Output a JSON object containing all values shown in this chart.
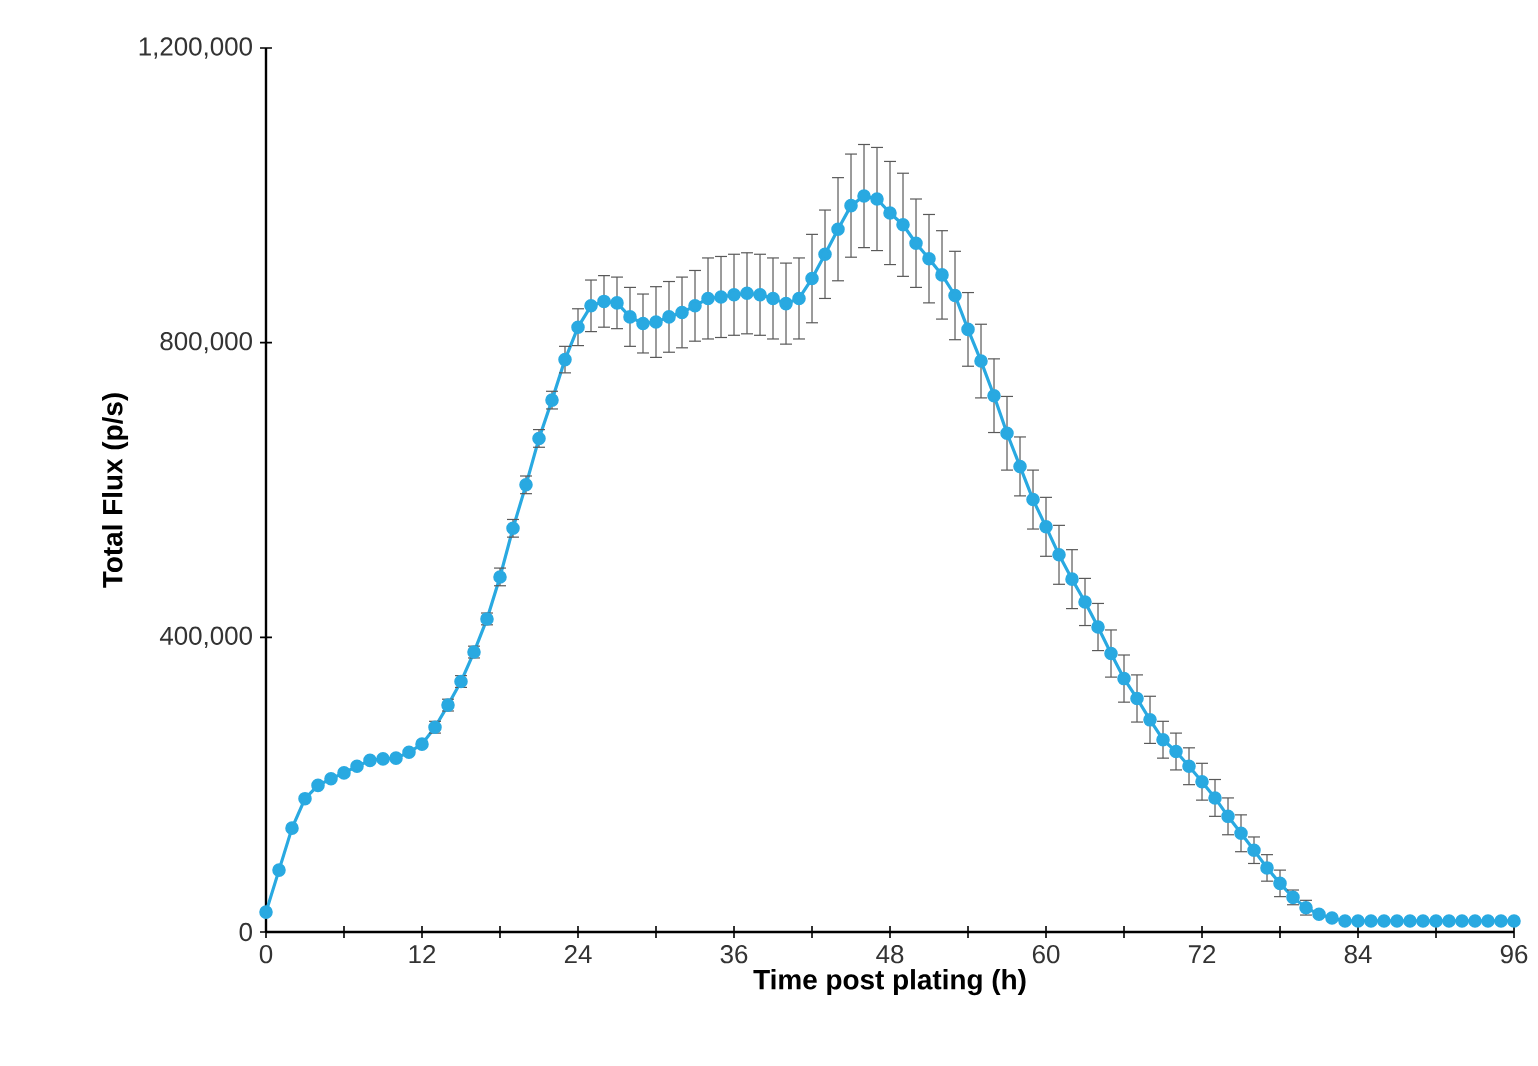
{
  "chart_data": {
    "type": "line",
    "xlabel": "Time post plating (h)",
    "ylabel": "Total Flux (p/s)",
    "xlim": [
      0,
      96
    ],
    "ylim": [
      0,
      1200000
    ],
    "xticks": [
      0,
      {
        "value": 6,
        "label": null
      },
      12,
      {
        "value": 18,
        "label": null
      },
      24,
      {
        "value": 30,
        "label": null
      },
      36,
      {
        "value": 42,
        "label": null
      },
      48,
      {
        "value": 54,
        "label": null
      },
      60,
      {
        "value": 66,
        "label": null
      },
      72,
      {
        "value": 78,
        "label": null
      },
      84,
      {
        "value": 90,
        "label": null
      },
      96
    ],
    "yticks": [
      0,
      {
        "value": 400000,
        "label": "400,000"
      },
      {
        "value": 800000,
        "label": "800,000"
      },
      {
        "value": 1200000,
        "label": "1,200,000"
      }
    ],
    "marker": "circle",
    "line_style": "solid",
    "series": [
      {
        "color": "#29a9e1",
        "x": [
          0,
          1,
          2,
          3,
          4,
          5,
          6,
          7,
          8,
          9,
          10,
          11,
          12,
          13,
          14,
          15,
          16,
          17,
          18,
          19,
          20,
          21,
          22,
          23,
          24,
          25,
          26,
          27,
          28,
          29,
          30,
          31,
          32,
          33,
          34,
          35,
          36,
          37,
          38,
          39,
          40,
          41,
          42,
          43,
          44,
          45,
          46,
          47,
          48,
          49,
          50,
          51,
          52,
          53,
          54,
          55,
          56,
          57,
          58,
          59,
          60,
          61,
          62,
          63,
          64,
          65,
          66,
          67,
          68,
          69,
          70,
          71,
          72,
          73,
          74,
          75,
          76,
          77,
          78,
          79,
          80,
          81,
          82,
          83,
          84,
          85,
          86,
          87,
          88,
          89,
          90,
          91,
          92,
          93,
          94,
          95,
          96
        ],
        "values": [
          27000,
          84000,
          141000,
          181000,
          199000,
          208000,
          216000,
          225000,
          233000,
          235000,
          236000,
          244000,
          255000,
          278000,
          308000,
          340000,
          380000,
          425000,
          482000,
          548000,
          607000,
          670000,
          722000,
          777000,
          821000,
          850000,
          856000,
          854000,
          835000,
          826000,
          828000,
          835000,
          841000,
          850000,
          860000,
          862000,
          865000,
          867000,
          865000,
          860000,
          853000,
          860000,
          887000,
          920000,
          954000,
          986000,
          999000,
          995000,
          976000,
          960000,
          935000,
          914000,
          892000,
          864000,
          818000,
          775000,
          728000,
          677000,
          632000,
          587000,
          550000,
          512000,
          479000,
          448000,
          414000,
          378000,
          344000,
          317000,
          288000,
          261000,
          245000,
          225000,
          204000,
          182000,
          157000,
          134000,
          111000,
          87000,
          66000,
          47000,
          33000,
          24000,
          19000,
          15000,
          15000,
          15000,
          15000,
          15000,
          15000,
          15000,
          15000,
          15000,
          15000,
          15000,
          15000,
          15000,
          15000
        ],
        "errors": [
          null,
          null,
          null,
          null,
          null,
          null,
          null,
          null,
          null,
          null,
          null,
          null,
          null,
          8000,
          8000,
          8000,
          8000,
          8000,
          12000,
          12000,
          12000,
          12000,
          12000,
          18000,
          25000,
          35000,
          35000,
          35000,
          40000,
          40000,
          48000,
          48000,
          48000,
          48000,
          55000,
          55000,
          55000,
          55000,
          55000,
          55000,
          55000,
          55000,
          60000,
          60000,
          70000,
          70000,
          70000,
          70000,
          70000,
          70000,
          60000,
          60000,
          60000,
          60000,
          50000,
          50000,
          50000,
          50000,
          40000,
          40000,
          40000,
          40000,
          40000,
          32000,
          32000,
          32000,
          32000,
          32000,
          32000,
          25000,
          25000,
          25000,
          25000,
          25000,
          25000,
          25000,
          18000,
          18000,
          18000,
          10000,
          10000,
          3000,
          3000,
          3000,
          3000,
          3000,
          3000,
          3000,
          3000,
          3000,
          3000,
          3000,
          3000,
          3000,
          3000,
          3000,
          3000
        ]
      }
    ]
  }
}
